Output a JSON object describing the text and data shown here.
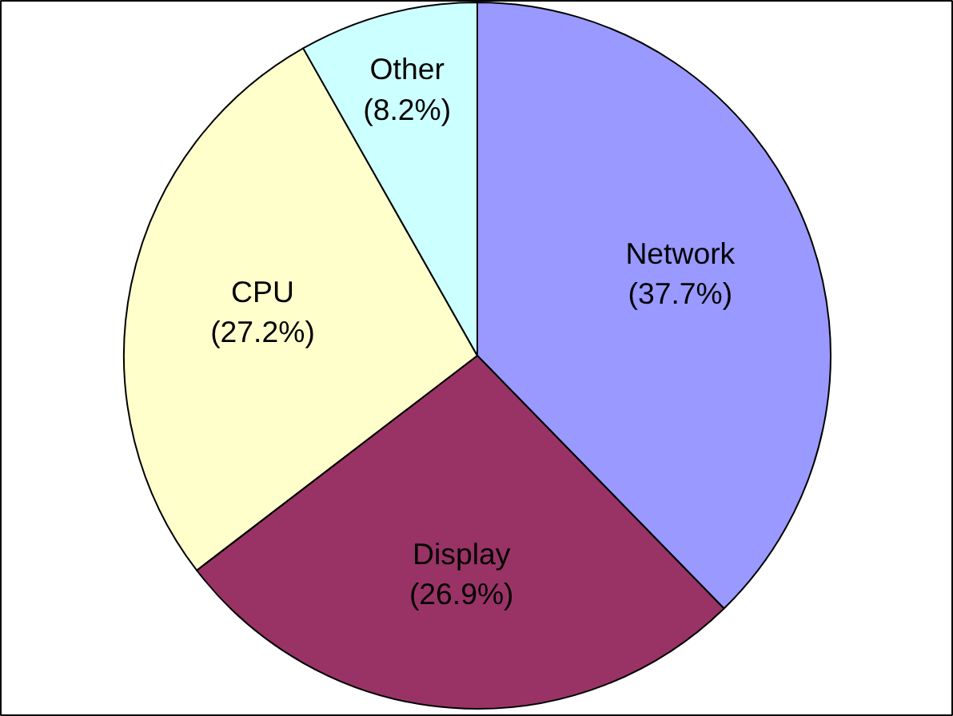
{
  "chart_data": {
    "type": "pie",
    "categories": [
      "Network",
      "Display",
      "CPU",
      "Other"
    ],
    "values": [
      37.7,
      26.9,
      27.2,
      8.2
    ],
    "value_labels": [
      "(37.7%)",
      "(26.9%)",
      "(27.2%)",
      "(8.2%)"
    ],
    "colors": [
      "#9999ff",
      "#993366",
      "#ffffcc",
      "#ccffff"
    ],
    "legend": false
  }
}
